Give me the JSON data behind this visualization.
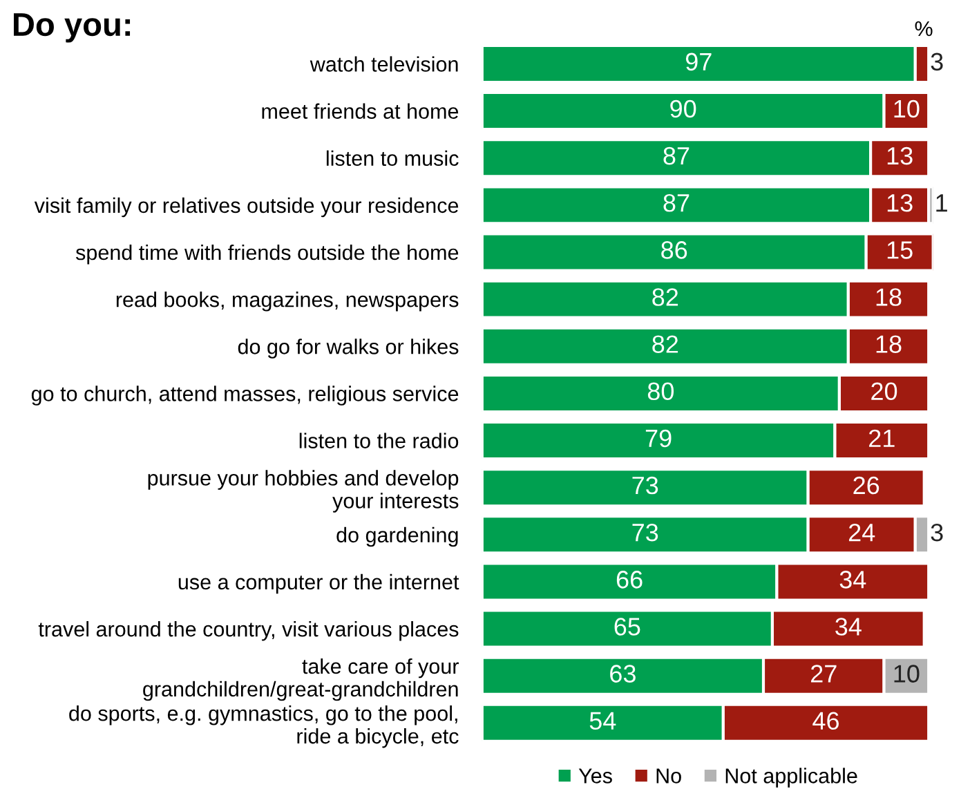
{
  "chart_data": {
    "type": "bar",
    "orientation": "horizontal",
    "stacked": true,
    "title": "Do you:",
    "categories": [
      "watch television",
      "meet friends at home",
      "listen to music",
      "visit family or relatives outside your residence",
      "spend time with friends outside the home",
      "read books, magazines, newspapers",
      "do go for walks or hikes",
      "go to church, attend masses, religious service",
      "listen to the radio",
      "pursue your hobbies and develop\nyour interests",
      "do gardening",
      "use a computer or the internet",
      "travel around the country, visit various places",
      "take care of your\ngrandchildren/great-grandchildren",
      "do sports, e.g. gymnastics, go to the pool,\nride a bicycle, etc"
    ],
    "series": [
      {
        "name": "Yes",
        "color": "#00a050",
        "values": [
          97,
          90,
          87,
          87,
          86,
          82,
          82,
          80,
          79,
          73,
          73,
          66,
          65,
          63,
          54
        ]
      },
      {
        "name": "No",
        "color": "#a01b10",
        "values": [
          3,
          10,
          13,
          13,
          15,
          18,
          18,
          20,
          21,
          26,
          24,
          34,
          34,
          27,
          46
        ]
      },
      {
        "name": "Not applicable",
        "color": "#b3b3b3",
        "values": [
          null,
          null,
          null,
          1,
          null,
          null,
          null,
          null,
          null,
          null,
          3,
          null,
          null,
          10,
          null
        ]
      }
    ],
    "data_labels": true,
    "legend": "bottom",
    "grid": false,
    "annotations": [
      "%"
    ]
  }
}
